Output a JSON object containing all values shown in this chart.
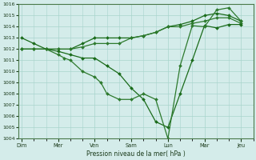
{
  "xlabel": "Pression niveau de la mer( hPa )",
  "ylim": [
    1004,
    1016
  ],
  "yticks": [
    1004,
    1005,
    1006,
    1007,
    1008,
    1009,
    1010,
    1011,
    1012,
    1013,
    1014,
    1015,
    1016
  ],
  "xtick_labels": [
    "Dim",
    "Mer",
    "Ven",
    "Sam",
    "Lun",
    "Mar",
    "Jeu"
  ],
  "xtick_positions": [
    0,
    12,
    24,
    36,
    48,
    60,
    72
  ],
  "background_color": "#d4ecea",
  "grid_color": "#a8d4cc",
  "line_color": "#1a6b1a",
  "line_color2": "#2d7a2d",
  "xlim": [
    -1,
    76
  ],
  "line1_x": [
    0,
    4,
    8,
    12,
    16,
    20,
    24,
    28,
    32,
    36,
    40,
    44,
    48,
    52,
    56,
    60,
    64,
    68,
    72
  ],
  "line1_y": [
    1012.0,
    1012.0,
    1012.0,
    1012.0,
    1012.0,
    1012.5,
    1013.0,
    1013.0,
    1013.0,
    1013.0,
    1013.2,
    1013.5,
    1014.0,
    1014.2,
    1014.5,
    1015.0,
    1015.2,
    1015.0,
    1014.5
  ],
  "line2_x": [
    0,
    4,
    8,
    12,
    16,
    20,
    24,
    28,
    32,
    36,
    40,
    44,
    48,
    52,
    56,
    60,
    64,
    68,
    72
  ],
  "line2_y": [
    1012.0,
    1012.0,
    1012.0,
    1012.0,
    1012.0,
    1012.2,
    1012.5,
    1012.5,
    1012.5,
    1013.0,
    1013.2,
    1013.5,
    1014.0,
    1014.0,
    1014.3,
    1014.5,
    1014.8,
    1014.8,
    1014.3
  ],
  "line3_x": [
    0,
    4,
    8,
    12,
    16,
    20,
    24,
    28,
    32,
    36,
    40,
    44,
    48,
    52,
    56,
    60,
    64,
    68,
    72
  ],
  "line3_y": [
    1013.0,
    1012.5,
    1012.0,
    1011.8,
    1011.5,
    1011.2,
    1011.2,
    1010.5,
    1009.8,
    1008.5,
    1007.5,
    1005.5,
    1005.0,
    1008.0,
    1011.0,
    1014.1,
    1013.9,
    1014.2,
    1014.2
  ],
  "line4_x": [
    0,
    4,
    8,
    12,
    14,
    16,
    20,
    24,
    26,
    28,
    32,
    36,
    40,
    44,
    48,
    52,
    56,
    60,
    64,
    68,
    72
  ],
  "line4_y": [
    1012.0,
    1012.0,
    1012.0,
    1011.5,
    1011.2,
    1011.0,
    1010.0,
    1009.5,
    1009.0,
    1008.0,
    1007.5,
    1007.5,
    1008.0,
    1007.5,
    1004.0,
    1010.5,
    1014.1,
    1014.0,
    1015.5,
    1015.7,
    1014.5
  ]
}
